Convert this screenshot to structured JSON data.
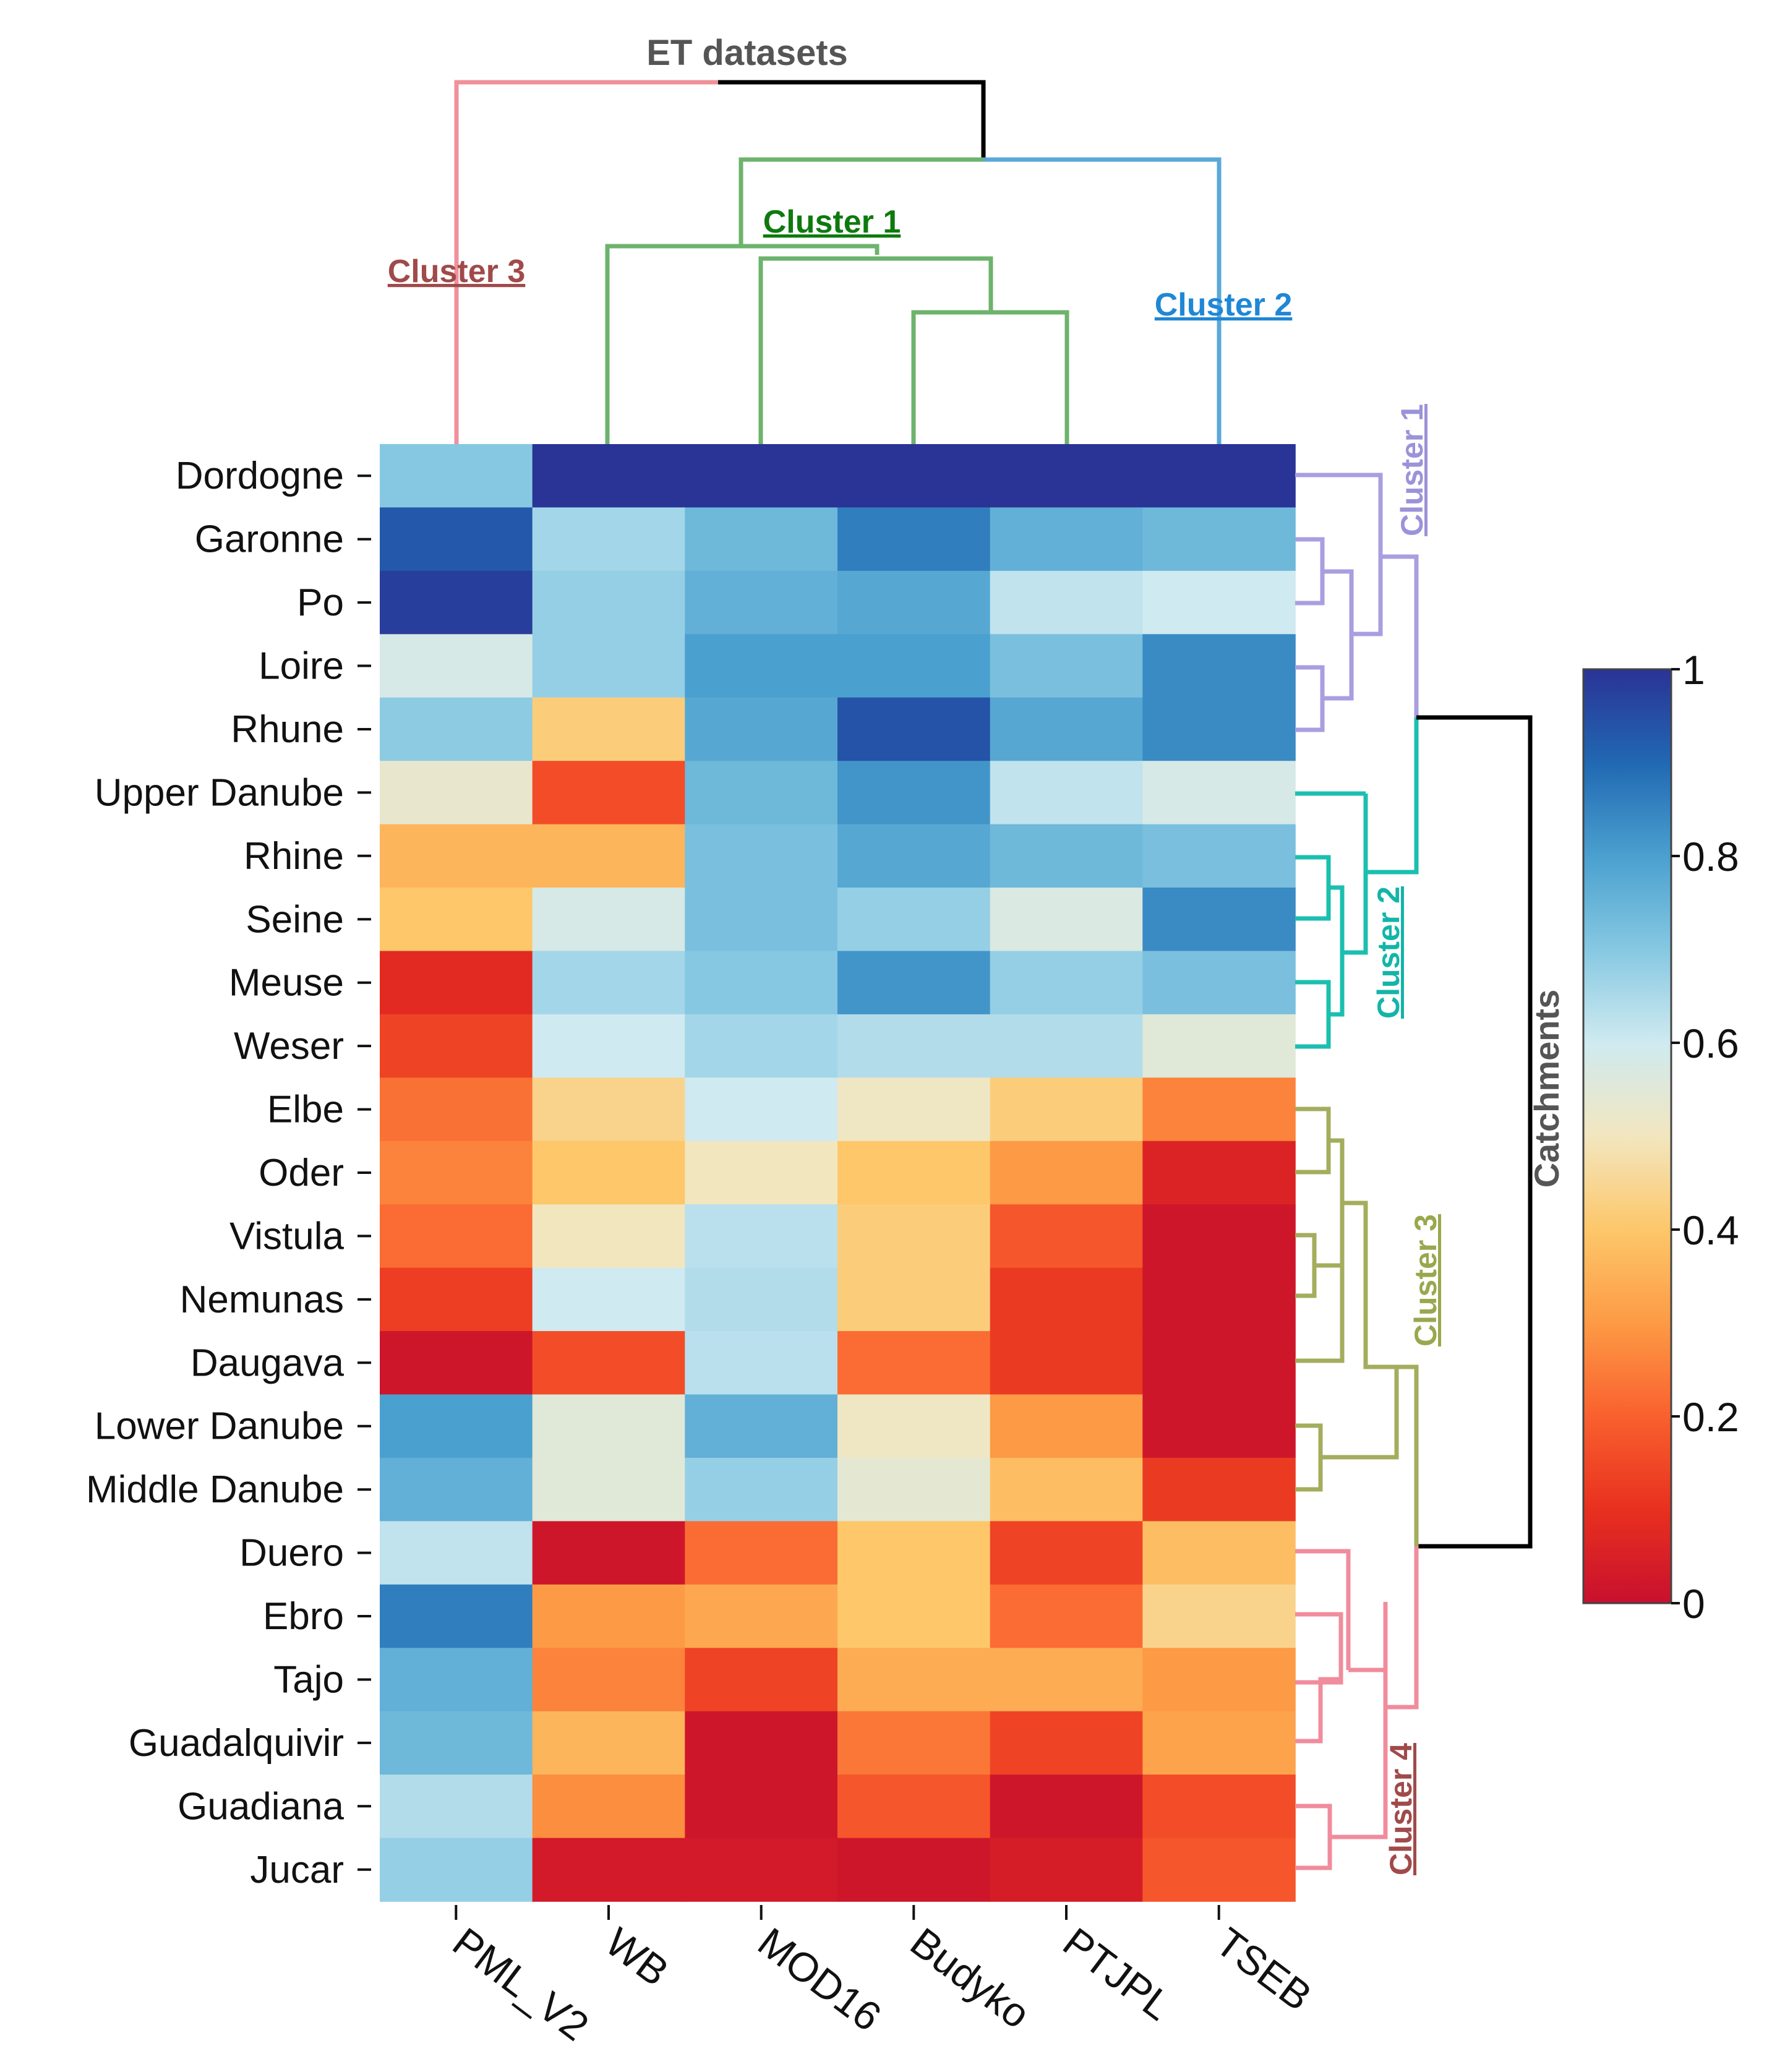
{
  "chart_data": {
    "type": "heatmap",
    "title": "ET datasets",
    "ylabel": "Catchments",
    "columns": [
      "PML_V2",
      "WB",
      "MOD16",
      "Budyko",
      "PTJPL",
      "TSEB"
    ],
    "rows": [
      "Dordogne",
      "Garonne",
      "Po",
      "Loire",
      "Rhune",
      "Upper Danube",
      "Rhine",
      "Seine",
      "Meuse",
      "Weser",
      "Elbe",
      "Oder",
      "Vistula",
      "Nemunas",
      "Daugava",
      "Lower Danube",
      "Middle Danube",
      "Duero",
      "Ebro",
      "Tajo",
      "Guadalquivir",
      "Guadiana",
      "Jucar"
    ],
    "values": [
      [
        0.7,
        1.0,
        1.0,
        1.0,
        1.0,
        1.0
      ],
      [
        0.93,
        0.66,
        0.74,
        0.86,
        0.76,
        0.74
      ],
      [
        0.98,
        0.68,
        0.76,
        0.78,
        0.62,
        0.6
      ],
      [
        0.58,
        0.68,
        0.8,
        0.8,
        0.72,
        0.84
      ],
      [
        0.69,
        0.42,
        0.78,
        0.94,
        0.78,
        0.84
      ],
      [
        0.53,
        0.16,
        0.74,
        0.82,
        0.62,
        0.58
      ],
      [
        0.36,
        0.36,
        0.72,
        0.78,
        0.74,
        0.72
      ],
      [
        0.4,
        0.58,
        0.72,
        0.68,
        0.57,
        0.84
      ],
      [
        0.08,
        0.66,
        0.7,
        0.82,
        0.68,
        0.72
      ],
      [
        0.14,
        0.6,
        0.66,
        0.64,
        0.64,
        0.55
      ],
      [
        0.23,
        0.44,
        0.6,
        0.51,
        0.42,
        0.26
      ],
      [
        0.26,
        0.4,
        0.5,
        0.4,
        0.3,
        0.06
      ],
      [
        0.22,
        0.5,
        0.63,
        0.42,
        0.18,
        0.02
      ],
      [
        0.13,
        0.6,
        0.64,
        0.42,
        0.12,
        0.02
      ],
      [
        0.02,
        0.16,
        0.63,
        0.22,
        0.12,
        0.02
      ],
      [
        0.8,
        0.55,
        0.76,
        0.51,
        0.3,
        0.02
      ],
      [
        0.76,
        0.55,
        0.68,
        0.54,
        0.38,
        0.12
      ],
      [
        0.62,
        0.02,
        0.22,
        0.4,
        0.14,
        0.38
      ],
      [
        0.86,
        0.3,
        0.33,
        0.4,
        0.22,
        0.44
      ],
      [
        0.76,
        0.26,
        0.14,
        0.34,
        0.34,
        0.3
      ],
      [
        0.74,
        0.36,
        0.02,
        0.24,
        0.14,
        0.32
      ],
      [
        0.64,
        0.28,
        0.02,
        0.18,
        0.02,
        0.16
      ],
      [
        0.68,
        0.03,
        0.03,
        0.02,
        0.04,
        0.18
      ]
    ],
    "colorbar": {
      "min": 0,
      "max": 1,
      "ticks": [
        "0",
        "0.2",
        "0.4",
        "0.6",
        "0.8",
        "1"
      ],
      "colormap": "RdYlBu"
    },
    "column_dendrogram": {
      "clusters": [
        {
          "label": "Cluster 1",
          "color": "#0e7a0e",
          "members": [
            "WB",
            "MOD16",
            "Budyko",
            "PTJPL"
          ]
        },
        {
          "label": "Cluster 2",
          "color": "#1f87d6",
          "members": [
            "TSEB"
          ]
        },
        {
          "label": "Cluster 3",
          "color": "#a04a4a",
          "members": [
            "PML_V2"
          ]
        }
      ]
    },
    "row_dendrogram": {
      "clusters": [
        {
          "label": "Cluster 1",
          "color": "#9b93d9",
          "members": [
            "Dordogne",
            "Garonne",
            "Po",
            "Loire",
            "Rhune"
          ]
        },
        {
          "label": "Cluster 2",
          "color": "#13b5a8",
          "members": [
            "Upper Danube",
            "Rhine",
            "Seine",
            "Meuse",
            "Weser"
          ]
        },
        {
          "label": "Cluster 3",
          "color": "#99a84e",
          "members": [
            "Elbe",
            "Oder",
            "Vistula",
            "Nemunas",
            "Daugava",
            "Lower Danube",
            "Middle Danube"
          ]
        },
        {
          "label": "Cluster 4",
          "color": "#a04a4a",
          "members": [
            "Duero",
            "Ebro",
            "Tajo",
            "Guadalquivir",
            "Guadiana",
            "Jucar"
          ]
        }
      ]
    }
  },
  "colors": {
    "tree_root": "#000000",
    "col_cluster1_line": "#6db36d",
    "col_cluster2_line": "#5aa8d8",
    "col_cluster3_line": "#f0909a",
    "row_cluster1_line": "#a99ee0",
    "row_cluster2_line": "#1bbfb0",
    "row_cluster3_line": "#a4ad5c",
    "row_cluster4_line": "#f08c9c",
    "title_text": "#555555"
  }
}
